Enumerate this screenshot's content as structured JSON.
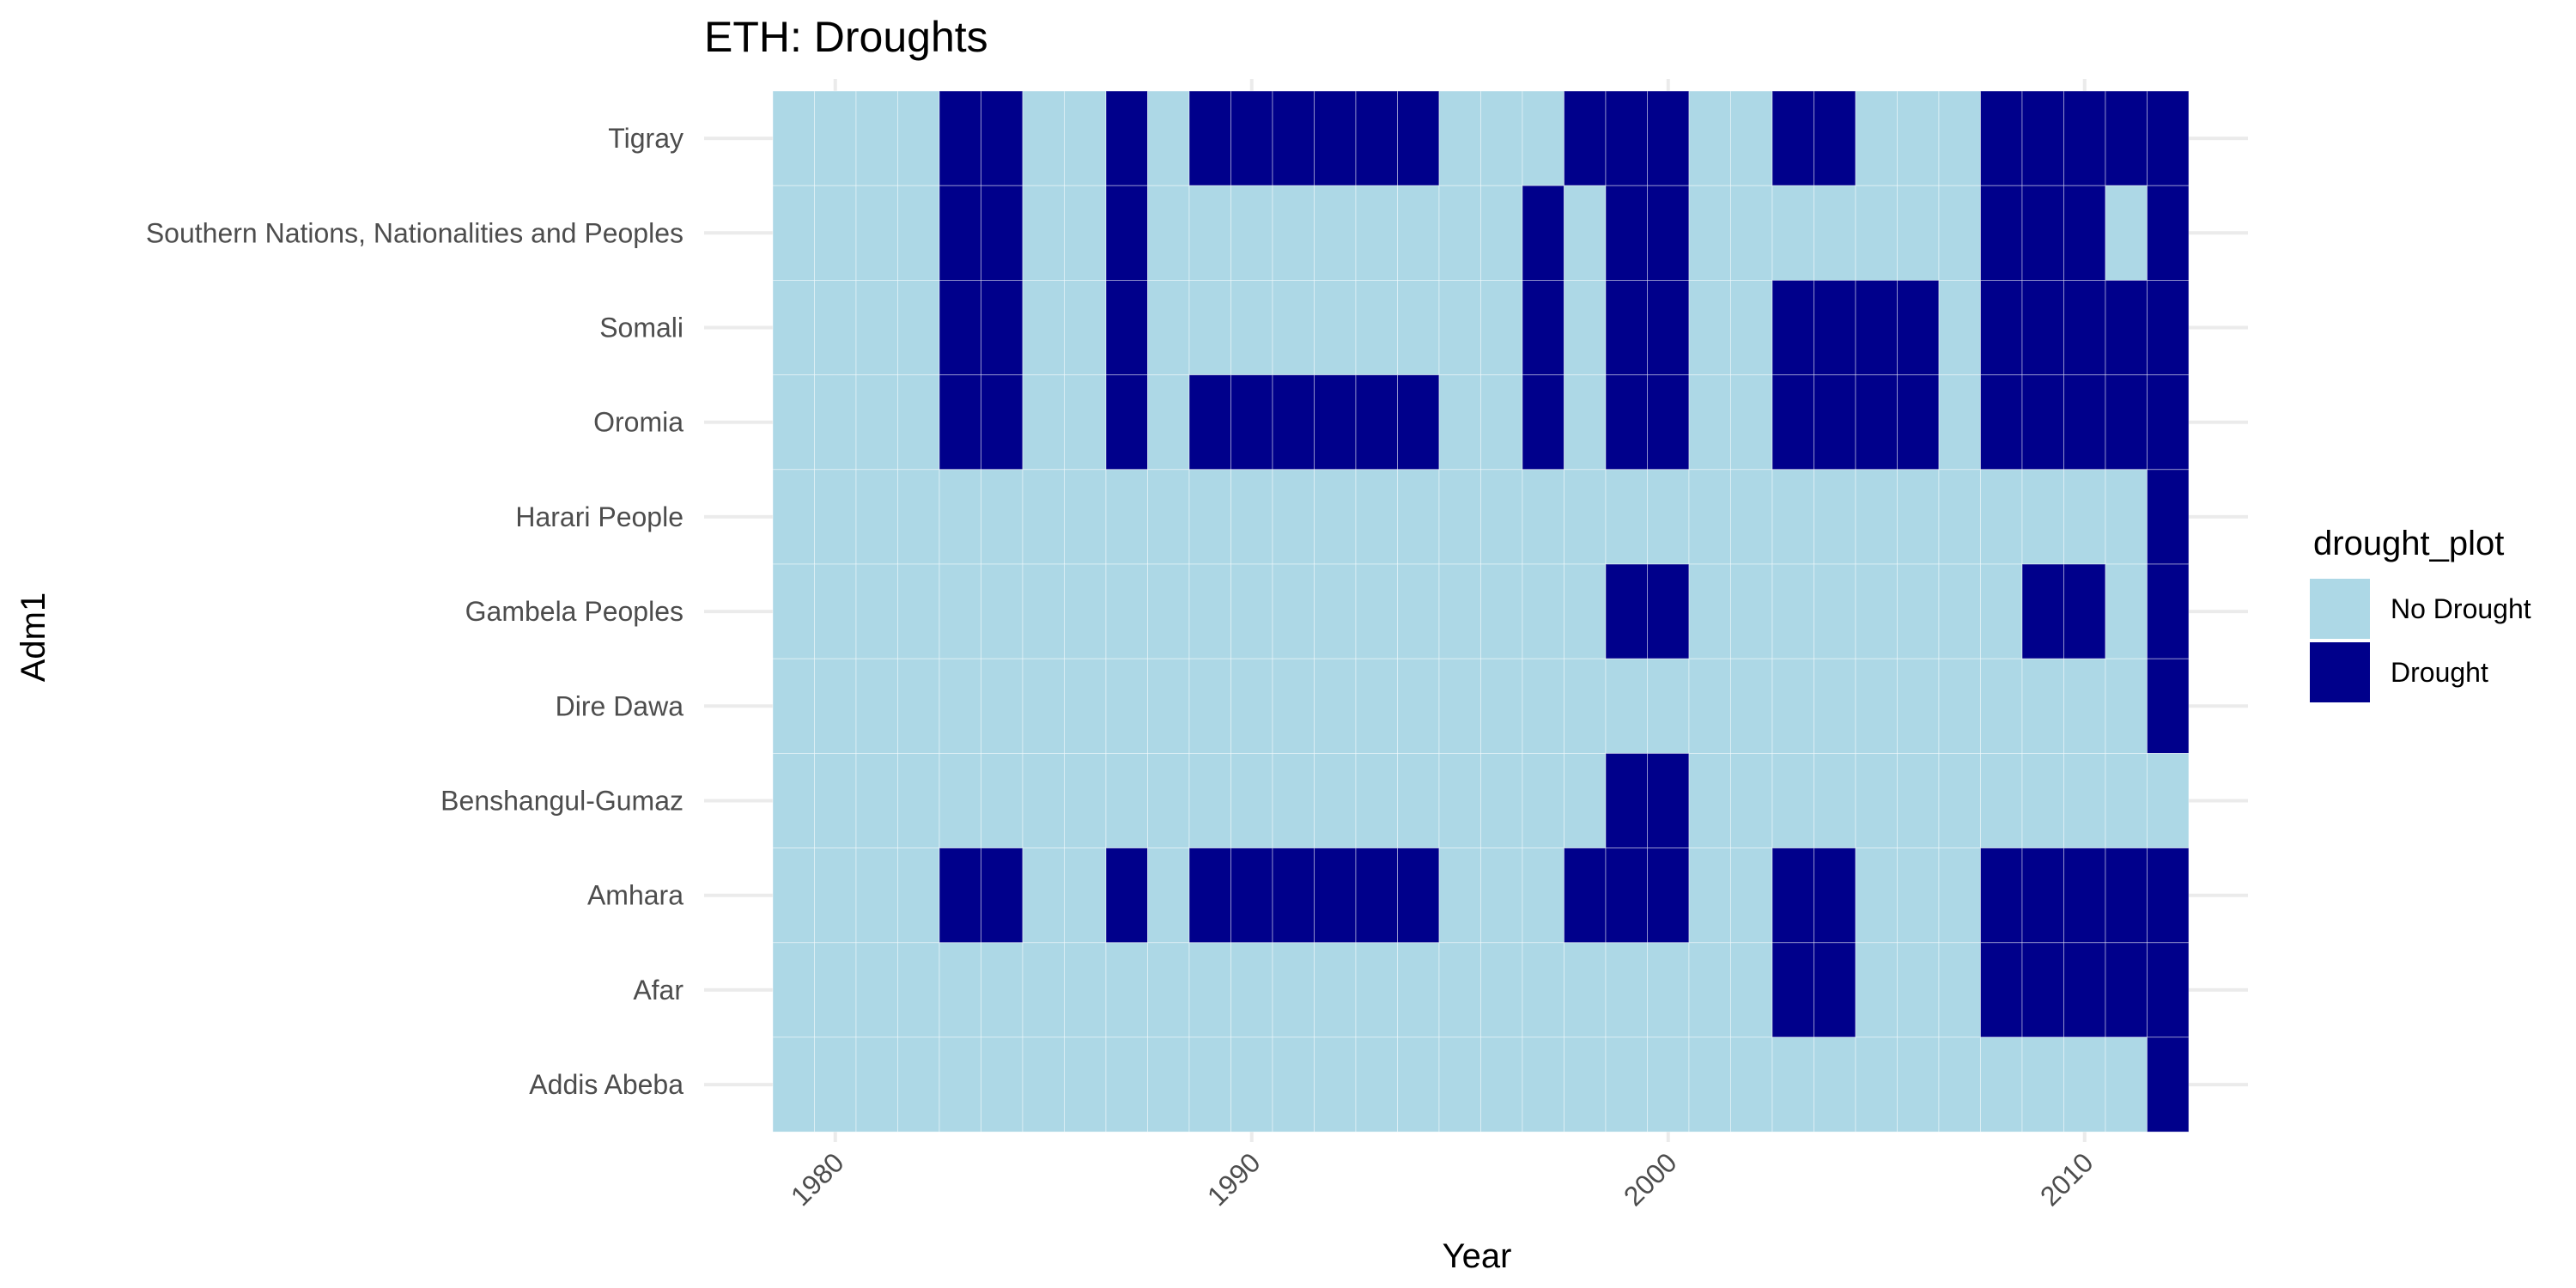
{
  "chart_data": {
    "type": "heatmap",
    "title": "ETH: Droughts",
    "xlabel": "Year",
    "ylabel": "Adm1",
    "x_years": [
      1979,
      1980,
      1981,
      1982,
      1983,
      1984,
      1985,
      1986,
      1987,
      1988,
      1989,
      1990,
      1991,
      1992,
      1993,
      1994,
      1995,
      1996,
      1997,
      1998,
      1999,
      2000,
      2001,
      2002,
      2003,
      2004,
      2005,
      2006,
      2007,
      2008,
      2009,
      2010,
      2011,
      2012
    ],
    "x_tick_labels": [
      "1980",
      "1990",
      "2000",
      "2010"
    ],
    "x_tick_values": [
      1980,
      1990,
      2000,
      2010
    ],
    "x_tick_rotation_deg": -45,
    "rows_top_to_bottom": [
      {
        "region": "Tigray",
        "drought_years": [
          1983,
          1984,
          1987,
          1989,
          1990,
          1991,
          1992,
          1993,
          1994,
          1998,
          1999,
          2000,
          2003,
          2004,
          2008,
          2009,
          2010,
          2011,
          2012
        ]
      },
      {
        "region": "Southern Nations, Nationalities and Peoples",
        "drought_years": [
          1983,
          1984,
          1987,
          1997,
          1999,
          2000,
          2008,
          2009,
          2010,
          2012
        ]
      },
      {
        "region": "Somali",
        "drought_years": [
          1983,
          1984,
          1987,
          1997,
          1999,
          2000,
          2003,
          2004,
          2005,
          2006,
          2008,
          2009,
          2010,
          2011,
          2012
        ]
      },
      {
        "region": "Oromia",
        "drought_years": [
          1983,
          1984,
          1987,
          1989,
          1990,
          1991,
          1992,
          1993,
          1994,
          1997,
          1999,
          2000,
          2003,
          2004,
          2005,
          2006,
          2008,
          2009,
          2010,
          2011,
          2012
        ]
      },
      {
        "region": "Harari People",
        "drought_years": [
          2012
        ]
      },
      {
        "region": "Gambela Peoples",
        "drought_years": [
          1999,
          2000,
          2009,
          2010,
          2012
        ]
      },
      {
        "region": "Dire Dawa",
        "drought_years": [
          2012
        ]
      },
      {
        "region": "Benshangul-Gumaz",
        "drought_years": [
          1999,
          2000
        ]
      },
      {
        "region": "Amhara",
        "drought_years": [
          1983,
          1984,
          1987,
          1989,
          1990,
          1991,
          1992,
          1993,
          1994,
          1998,
          1999,
          2000,
          2003,
          2004,
          2008,
          2009,
          2010,
          2011,
          2012
        ]
      },
      {
        "region": "Afar",
        "drought_years": [
          2003,
          2004,
          2008,
          2009,
          2010,
          2011,
          2012
        ]
      },
      {
        "region": "Addis Abeba",
        "drought_years": [
          2012
        ]
      }
    ],
    "legend": {
      "title": "drought_plot",
      "placement": "right",
      "items": [
        {
          "label": "No Drought",
          "color": "#add8e6"
        },
        {
          "label": "Drought",
          "color": "#00008b"
        }
      ]
    },
    "grid": true,
    "colors": {
      "no_drought": "#add8e6",
      "drought": "#00008b",
      "gridline": "#ebebeb",
      "cell_border": "#ffffff"
    }
  }
}
